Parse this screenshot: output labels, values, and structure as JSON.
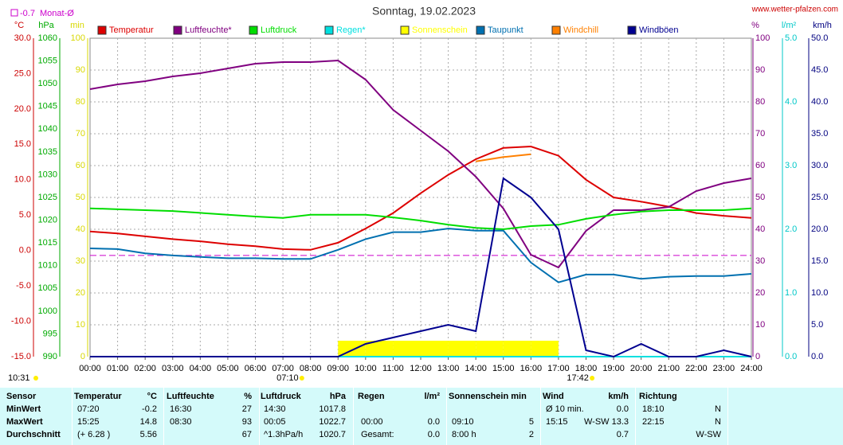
{
  "chart_data": {
    "type": "line",
    "title": "Sonntag, 19.02.2023",
    "source": "www.wetter-pfalzen.com",
    "month_avg": {
      "value": -0.7,
      "label": "Monat-Ø",
      "color": "#cc00cc"
    },
    "current_time": "10:31",
    "sunrise": "07:10",
    "sunset": "17:42",
    "x": [
      "00:00",
      "01:00",
      "02:00",
      "03:00",
      "04:00",
      "05:00",
      "06:00",
      "07:00",
      "08:00",
      "09:00",
      "10:00",
      "11:00",
      "12:00",
      "13:00",
      "14:00",
      "15:00",
      "16:00",
      "17:00",
      "18:00",
      "19:00",
      "20:00",
      "21:00",
      "22:00",
      "23:00",
      "24:00"
    ],
    "grid": true,
    "axes": {
      "temp": {
        "label": "°C",
        "color": "#cc0000",
        "side": "left",
        "ylim": [
          -15,
          30
        ],
        "yticks": [
          {
            "value": -15,
            "label": "-15.0"
          },
          {
            "value": -10,
            "label": "-10.0"
          },
          {
            "value": -5,
            "label": "-5.0"
          },
          {
            "value": 0,
            "label": "0.0"
          },
          {
            "value": 5,
            "label": "5.0"
          },
          {
            "value": 10,
            "label": "10.0"
          },
          {
            "value": 15,
            "label": "15.0"
          },
          {
            "value": 20,
            "label": "20.0"
          },
          {
            "value": 25,
            "label": "25.0"
          },
          {
            "value": 30,
            "label": "30.0"
          }
        ]
      },
      "press": {
        "label": "hPa",
        "color": "#00aa00",
        "side": "left",
        "ylim": [
          990,
          1060
        ],
        "yticks": [
          990,
          995,
          1000,
          1005,
          1010,
          1015,
          1020,
          1025,
          1030,
          1035,
          1040,
          1045,
          1050,
          1055,
          1060
        ]
      },
      "sun": {
        "label": "min",
        "color": "#d8d800",
        "side": "left",
        "ylim": [
          0,
          100
        ],
        "yticks": [
          0,
          10,
          20,
          30,
          40,
          50,
          60,
          70,
          80,
          90,
          100
        ]
      },
      "hum": {
        "label": "%",
        "color": "#800080",
        "side": "right",
        "ylim": [
          0,
          100
        ],
        "yticks": [
          0,
          10,
          20,
          30,
          40,
          50,
          60,
          70,
          80,
          90,
          100
        ]
      },
      "rain": {
        "label": "l/m²",
        "color": "#00c8c8",
        "side": "right",
        "ylim": [
          0,
          5
        ],
        "yticks": [
          {
            "value": 0,
            "label": "0.0"
          },
          {
            "value": 1,
            "label": "1.0"
          },
          {
            "value": 2,
            "label": "2.0"
          },
          {
            "value": 3,
            "label": "3.0"
          },
          {
            "value": 4,
            "label": "4.0"
          },
          {
            "value": 5,
            "label": "5.0"
          }
        ]
      },
      "wind": {
        "label": "km/h",
        "color": "#000080",
        "side": "right",
        "ylim": [
          0,
          50
        ],
        "yticks": [
          {
            "value": 0,
            "label": "0.0"
          },
          {
            "value": 5,
            "label": "5.0"
          },
          {
            "value": 10,
            "label": "10.0"
          },
          {
            "value": 15,
            "label": "15.0"
          },
          {
            "value": 20,
            "label": "20.0"
          },
          {
            "value": 25,
            "label": "25.0"
          },
          {
            "value": 30,
            "label": "30.0"
          },
          {
            "value": 35,
            "label": "35.0"
          },
          {
            "value": 40,
            "label": "40.0"
          },
          {
            "value": 45,
            "label": "45.0"
          },
          {
            "value": 50,
            "label": "50.0"
          }
        ]
      }
    },
    "series": [
      {
        "name": "Temperatur",
        "color": "#dd0000",
        "axis": "temp",
        "kind": "line",
        "values": [
          2.7,
          2.4,
          2.0,
          1.6,
          1.3,
          0.9,
          0.6,
          0.2,
          0.1,
          1.1,
          3.1,
          5.3,
          8.1,
          10.7,
          12.9,
          14.5,
          14.7,
          13.4,
          10.0,
          7.5,
          6.9,
          6.2,
          5.3,
          4.9,
          4.6
        ]
      },
      {
        "name": "Luftfeuchte*",
        "color": "#800080",
        "axis": "hum",
        "kind": "line",
        "values": [
          84,
          85.5,
          86.5,
          88,
          89,
          90.5,
          92,
          92.5,
          92.5,
          93,
          87,
          77.5,
          71,
          64.5,
          56.5,
          46.5,
          32,
          28,
          39.5,
          46,
          46,
          47,
          52,
          54.5,
          56
        ]
      },
      {
        "name": "Luftdruck",
        "color": "#00dd00",
        "axis": "press",
        "kind": "line",
        "values": [
          1022.6,
          1022.4,
          1022.2,
          1022.0,
          1021.6,
          1021.2,
          1020.8,
          1020.5,
          1021.2,
          1021.2,
          1021.2,
          1020.6,
          1019.9,
          1019.0,
          1018.3,
          1018.0,
          1018.7,
          1019.0,
          1020.3,
          1021.2,
          1021.9,
          1022.2,
          1022.2,
          1022.2,
          1022.6
        ]
      },
      {
        "name": "Regen*",
        "color": "#00e0e0",
        "axis": "rain",
        "kind": "line",
        "values": [
          0,
          0,
          0,
          0,
          0,
          0,
          0,
          0,
          0,
          0,
          0,
          0,
          0,
          0,
          0,
          0,
          0,
          0,
          0,
          0,
          0,
          0,
          0,
          0,
          0
        ]
      },
      {
        "name": "Sonnenschein",
        "color": "#ffff00",
        "axis": "sun",
        "kind": "bar",
        "values": [
          0,
          0,
          0,
          0,
          0,
          0,
          0,
          0,
          0,
          5,
          5,
          5,
          5,
          5,
          5,
          5,
          5,
          0,
          0,
          0,
          0,
          0,
          0,
          0,
          0
        ]
      },
      {
        "name": "Taupunkt",
        "color": "#0070b0",
        "axis": "temp",
        "kind": "line",
        "values": [
          0.3,
          0.2,
          -0.4,
          -0.7,
          -0.9,
          -1.1,
          -1.1,
          -1.2,
          -1.2,
          0.1,
          1.6,
          2.6,
          2.6,
          3.1,
          2.8,
          2.8,
          -1.7,
          -4.5,
          -3.4,
          -3.4,
          -4.0,
          -3.7,
          -3.6,
          -3.6,
          -3.3
        ]
      },
      {
        "name": "Windchill",
        "color": "#ff8000",
        "axis": "temp",
        "kind": "line",
        "values": [
          null,
          null,
          null,
          null,
          null,
          null,
          null,
          null,
          null,
          null,
          null,
          null,
          null,
          null,
          12.6,
          13.2,
          13.6,
          null,
          null,
          null,
          null,
          null,
          null,
          null,
          null
        ]
      },
      {
        "name": "Windböen",
        "color": "#000090",
        "axis": "wind",
        "kind": "line",
        "values": [
          0,
          0,
          0,
          0,
          0,
          0,
          0,
          0,
          0,
          0,
          2,
          3,
          4,
          5,
          4,
          28,
          25,
          20,
          1,
          0,
          2,
          0,
          0,
          1,
          0
        ]
      }
    ]
  },
  "table": {
    "rows": [
      {
        "label": "Sensor",
        "t_time": "Temperatur",
        "t_val": "°C",
        "h_time": "Luftfeuchte",
        "h_val": "%",
        "p_time": "Luftdruck",
        "p_val": "hPa",
        "r_time": "Regen",
        "r_val": "l/m²",
        "s_time": "Sonnenschein min",
        "w_time": "Wind",
        "w_val": "km/h",
        "d_time": "Richtung"
      },
      {
        "label": "MinWert",
        "t_time": "07:20",
        "t_val": "-0.2",
        "h_time": "16:30",
        "h_val": "27",
        "p_time": "14:30",
        "p_val": "1017.8",
        "w_time": "Ø 10 min.",
        "w_val": "0.0",
        "d_time": "18:10",
        "d_val": "N"
      },
      {
        "label": "MaxWert",
        "t_time": "15:25",
        "t_val": "14.8",
        "h_time": "08:30",
        "h_val": "93",
        "p_time": "00:05",
        "p_val": "1022.7",
        "r_time": "00:00",
        "r_val": "0.0",
        "s_time": "09:10",
        "s_val": "5",
        "w_time": "15:15",
        "w_val": "W-SW 13.3",
        "d_time": "22:15",
        "d_val": "N"
      },
      {
        "label": "Durchschnitt",
        "t_time": "(+ 6.28 )",
        "t_val": "5.56",
        "h_val": "67",
        "p_time": "^1.3hPa/h",
        "p_val": "1020.7",
        "r_time": "Gesamt:",
        "r_val": "0.0",
        "s_time": "8:00 h",
        "s_val": "2",
        "w_val": "0.7",
        "d_val": "W-SW"
      }
    ]
  }
}
